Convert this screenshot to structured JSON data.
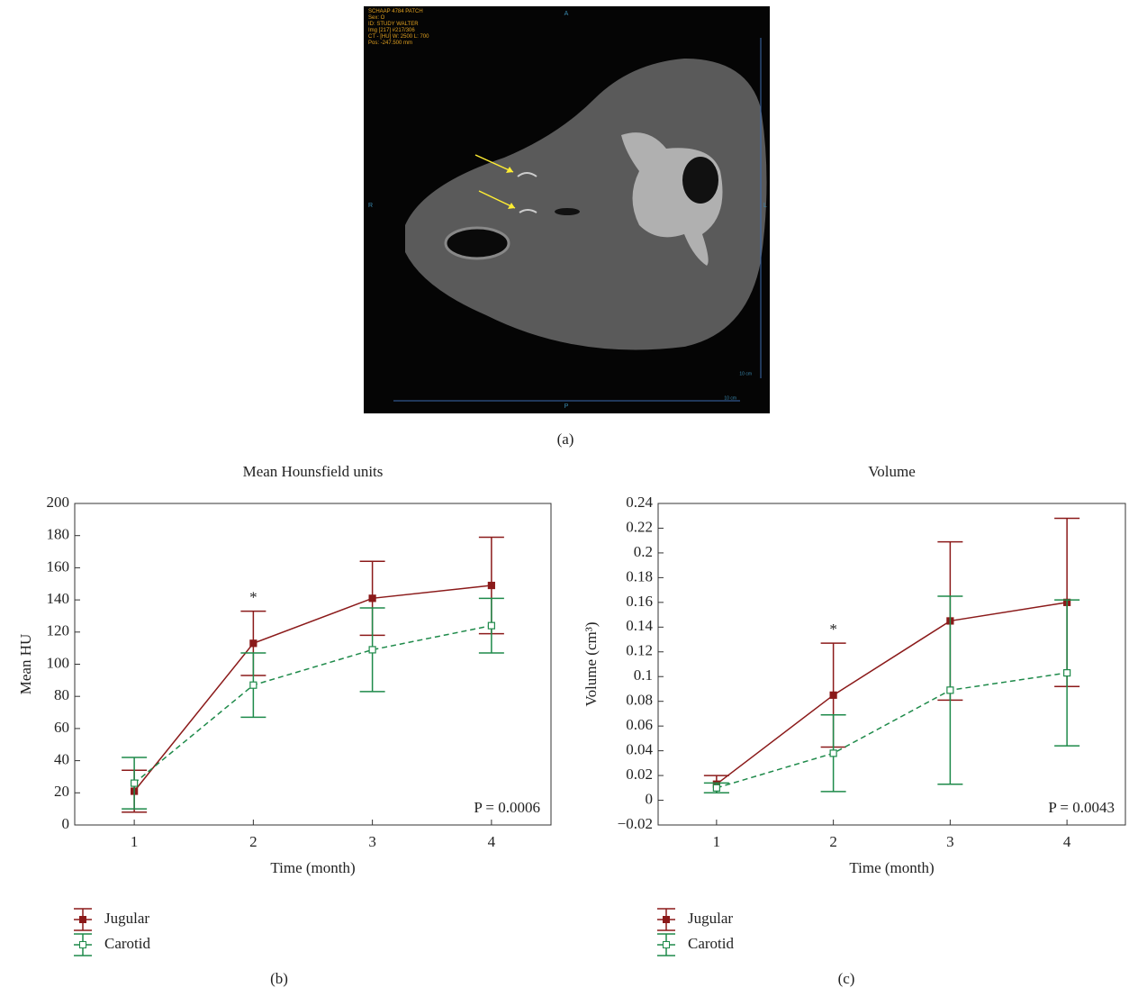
{
  "image": {
    "caption": "(a)",
    "overlay_text": [
      "SCHAAP 4784 PATCH",
      "Sex: O",
      "ID: STUDY WALTER",
      "Img [217] #217/306",
      "CT - [HU] W: 2500 L: 700",
      "Pos: -247.500 mm"
    ],
    "orientation": {
      "top": "A",
      "bottom": "P",
      "left": "R",
      "right": "L"
    },
    "scale_labels": [
      "10 cm",
      "10 cm"
    ]
  },
  "chart_data": [
    {
      "type": "line",
      "title": "Mean Hounsfield units",
      "caption": "(b)",
      "x_label": "Time (month)",
      "y_label": "Mean HU",
      "x": [
        1,
        2,
        3,
        4
      ],
      "xlim": [
        0.5,
        4.5
      ],
      "xticks": [
        1,
        2,
        3,
        4
      ],
      "ylim": [
        0,
        200
      ],
      "yticks": [
        0,
        20,
        40,
        60,
        80,
        100,
        120,
        140,
        160,
        180,
        200
      ],
      "significance_marker": "*",
      "p_value_label": "P = 0.0006",
      "series": [
        {
          "name": "Jugular",
          "color": "#8b1a1a",
          "marker": "filled-square",
          "dash": false,
          "values": [
            21,
            113,
            141,
            149
          ],
          "errors": [
            13,
            20,
            23,
            30
          ]
        },
        {
          "name": "Carotid",
          "color": "#1e8a4a",
          "marker": "open-square",
          "dash": true,
          "values": [
            26,
            87,
            109,
            124
          ],
          "errors": [
            16,
            20,
            26,
            17
          ]
        }
      ]
    },
    {
      "type": "line",
      "title": "Volume",
      "caption": "(c)",
      "x_label": "Time (month)",
      "y_label": "Volume (cm³)",
      "x": [
        1,
        2,
        3,
        4
      ],
      "xlim": [
        0.5,
        4.5
      ],
      "xticks": [
        1,
        2,
        3,
        4
      ],
      "ylim": [
        -0.02,
        0.24
      ],
      "yticks": [
        {
          "value": -0.02,
          "label": "−0.02"
        },
        0,
        0.02,
        0.04,
        0.06,
        0.08,
        0.1,
        0.12,
        0.14,
        0.16,
        0.18,
        0.2,
        0.22,
        0.24
      ],
      "significance_marker": "*",
      "p_value_label": "P = 0.0043",
      "series": [
        {
          "name": "Jugular",
          "color": "#8b1a1a",
          "marker": "filled-square",
          "dash": false,
          "values": [
            0.013,
            0.085,
            0.145,
            0.16
          ],
          "errors": [
            0.007,
            0.042,
            0.064,
            0.068
          ]
        },
        {
          "name": "Carotid",
          "color": "#1e8a4a",
          "marker": "open-square",
          "dash": true,
          "values": [
            0.01,
            0.038,
            0.089,
            0.103
          ],
          "errors": [
            0.004,
            0.031,
            0.076,
            0.059
          ]
        }
      ]
    }
  ]
}
